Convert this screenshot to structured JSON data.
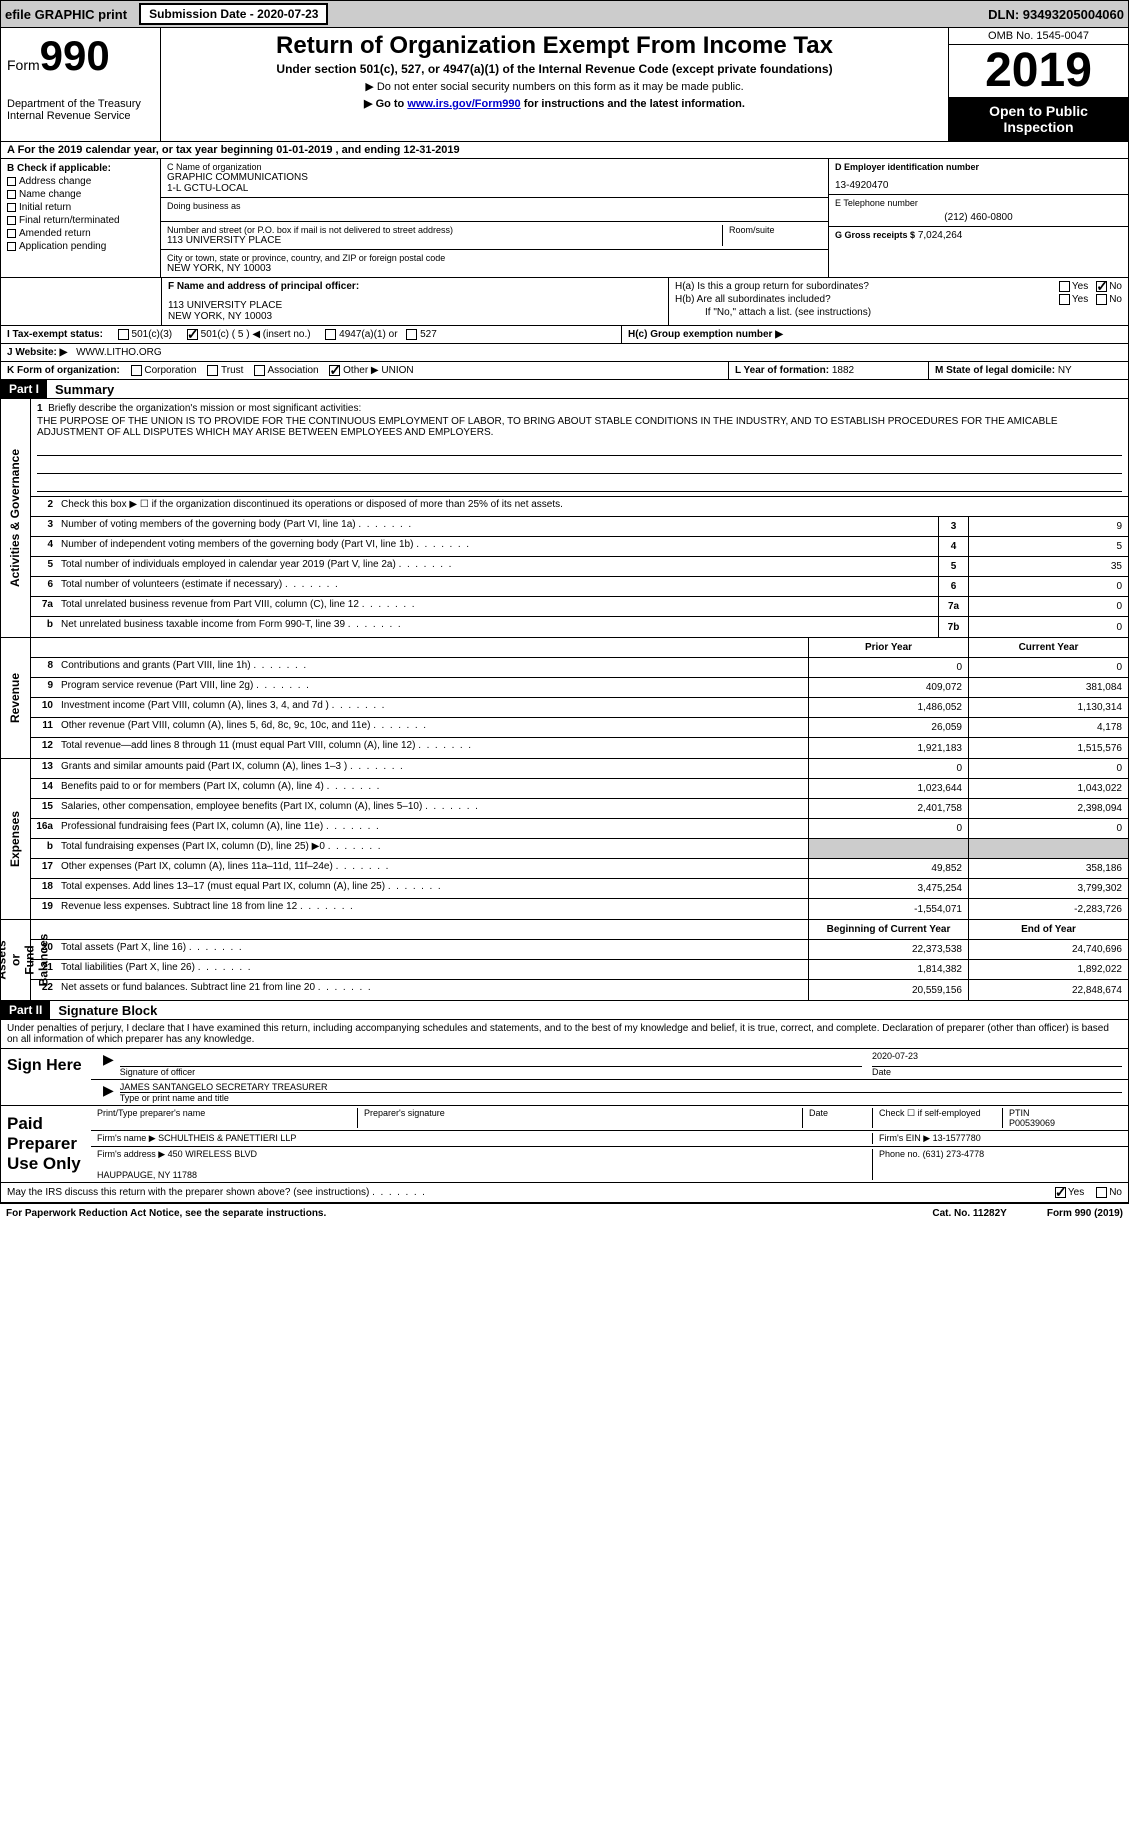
{
  "topbar": {
    "efile": "efile GRAPHIC print",
    "submission": "Submission Date - 2020-07-23",
    "dln": "DLN: 93493205004060"
  },
  "header": {
    "form_prefix": "Form",
    "form_num": "990",
    "dept": "Department of the Treasury\nInternal Revenue Service",
    "title": "Return of Organization Exempt From Income Tax",
    "sub1": "Under section 501(c), 527, or 4947(a)(1) of the Internal Revenue Code (except private foundations)",
    "sub2": "▶ Do not enter social security numbers on this form as it may be made public.",
    "sub3_pre": "▶ Go to ",
    "sub3_link": "www.irs.gov/Form990",
    "sub3_post": " for instructions and the latest information.",
    "omb": "OMB No. 1545-0047",
    "year": "2019",
    "openpub": "Open to Public Inspection"
  },
  "period": "A For the 2019 calendar year, or tax year beginning 01-01-2019   , and ending 12-31-2019",
  "boxB": {
    "hdr": "B Check if applicable:",
    "opts": [
      "Address change",
      "Name change",
      "Initial return",
      "Final return/terminated",
      "Amended return",
      "Application pending"
    ]
  },
  "boxC": {
    "name_lbl": "C Name of organization",
    "name": "GRAPHIC COMMUNICATIONS\n1-L GCTU-LOCAL",
    "dba_lbl": "Doing business as",
    "dba": "",
    "addr_lbl": "Number and street (or P.O. box if mail is not delivered to street address)",
    "room_lbl": "Room/suite",
    "addr": "113 UNIVERSITY PLACE",
    "city_lbl": "City or town, state or province, country, and ZIP or foreign postal code",
    "city": "NEW YORK, NY  10003"
  },
  "boxD": {
    "lbl": "D Employer identification number",
    "val": "13-4920470"
  },
  "boxE": {
    "lbl": "E Telephone number",
    "val": "(212) 460-0800"
  },
  "boxG": {
    "lbl": "G Gross receipts $",
    "val": "7,024,264"
  },
  "boxF": {
    "lbl": "F Name and address of principal officer:",
    "val": "113 UNIVERSITY PLACE\nNEW YORK, NY  10003"
  },
  "boxH": {
    "a": "H(a)  Is this a group return for subordinates?",
    "b": "H(b)  Are all subordinates included?",
    "note": "If \"No,\" attach a list. (see instructions)",
    "c": "H(c)  Group exemption number ▶"
  },
  "boxI": {
    "lbl": "I   Tax-exempt status:",
    "o1": "501(c)(3)",
    "o2": "501(c) ( 5 ) ◀ (insert no.)",
    "o3": "4947(a)(1) or",
    "o4": "527"
  },
  "boxJ": {
    "lbl": "J   Website: ▶",
    "val": "WWW.LITHO.ORG"
  },
  "boxK": {
    "lbl": "K Form of organization:",
    "o1": "Corporation",
    "o2": "Trust",
    "o3": "Association",
    "o4": "Other ▶",
    "val": "UNION"
  },
  "boxL": {
    "lbl": "L Year of formation:",
    "val": "1882"
  },
  "boxM": {
    "lbl": "M State of legal domicile:",
    "val": "NY"
  },
  "part1": {
    "hdr": "Part I",
    "title": "Summary"
  },
  "mission": {
    "lbl": "Briefly describe the organization's mission or most significant activities:",
    "txt": "THE PURPOSE OF THE UNION IS TO PROVIDE FOR THE CONTINUOUS EMPLOYMENT OF LABOR, TO BRING ABOUT STABLE CONDITIONS IN THE INDUSTRY, AND TO ESTABLISH PROCEDURES FOR THE AMICABLE ADJUSTMENT OF ALL DISPUTES WHICH MAY ARISE BETWEEN EMPLOYEES AND EMPLOYERS."
  },
  "lines_gov": [
    {
      "n": "2",
      "t": "Check this box ▶ ☐  if the organization discontinued its operations or disposed of more than 25% of its net assets."
    },
    {
      "n": "3",
      "t": "Number of voting members of the governing body (Part VI, line 1a)",
      "c": "3",
      "v": "9"
    },
    {
      "n": "4",
      "t": "Number of independent voting members of the governing body (Part VI, line 1b)",
      "c": "4",
      "v": "5"
    },
    {
      "n": "5",
      "t": "Total number of individuals employed in calendar year 2019 (Part V, line 2a)",
      "c": "5",
      "v": "35"
    },
    {
      "n": "6",
      "t": "Total number of volunteers (estimate if necessary)",
      "c": "6",
      "v": "0"
    },
    {
      "n": "7a",
      "t": "Total unrelated business revenue from Part VIII, column (C), line 12",
      "c": "7a",
      "v": "0"
    },
    {
      "n": "b",
      "t": "Net unrelated business taxable income from Form 990-T, line 39",
      "c": "7b",
      "v": "0"
    }
  ],
  "col_hdrs": {
    "prior": "Prior Year",
    "current": "Current Year"
  },
  "lines_rev": [
    {
      "n": "8",
      "t": "Contributions and grants (Part VIII, line 1h)",
      "p": "0",
      "c": "0"
    },
    {
      "n": "9",
      "t": "Program service revenue (Part VIII, line 2g)",
      "p": "409,072",
      "c": "381,084"
    },
    {
      "n": "10",
      "t": "Investment income (Part VIII, column (A), lines 3, 4, and 7d )",
      "p": "1,486,052",
      "c": "1,130,314"
    },
    {
      "n": "11",
      "t": "Other revenue (Part VIII, column (A), lines 5, 6d, 8c, 9c, 10c, and 11e)",
      "p": "26,059",
      "c": "4,178"
    },
    {
      "n": "12",
      "t": "Total revenue—add lines 8 through 11 (must equal Part VIII, column (A), line 12)",
      "p": "1,921,183",
      "c": "1,515,576"
    }
  ],
  "lines_exp": [
    {
      "n": "13",
      "t": "Grants and similar amounts paid (Part IX, column (A), lines 1–3 )",
      "p": "0",
      "c": "0"
    },
    {
      "n": "14",
      "t": "Benefits paid to or for members (Part IX, column (A), line 4)",
      "p": "1,023,644",
      "c": "1,043,022"
    },
    {
      "n": "15",
      "t": "Salaries, other compensation, employee benefits (Part IX, column (A), lines 5–10)",
      "p": "2,401,758",
      "c": "2,398,094"
    },
    {
      "n": "16a",
      "t": "Professional fundraising fees (Part IX, column (A), line 11e)",
      "p": "0",
      "c": "0"
    },
    {
      "n": "b",
      "t": "Total fundraising expenses (Part IX, column (D), line 25) ▶0",
      "p": "",
      "c": "",
      "grey": true
    },
    {
      "n": "17",
      "t": "Other expenses (Part IX, column (A), lines 11a–11d, 11f–24e)",
      "p": "49,852",
      "c": "358,186"
    },
    {
      "n": "18",
      "t": "Total expenses. Add lines 13–17 (must equal Part IX, column (A), line 25)",
      "p": "3,475,254",
      "c": "3,799,302"
    },
    {
      "n": "19",
      "t": "Revenue less expenses. Subtract line 18 from line 12",
      "p": "-1,554,071",
      "c": "-2,283,726"
    }
  ],
  "col_hdrs2": {
    "beg": "Beginning of Current Year",
    "end": "End of Year"
  },
  "lines_na": [
    {
      "n": "20",
      "t": "Total assets (Part X, line 16)",
      "p": "22,373,538",
      "c": "24,740,696"
    },
    {
      "n": "21",
      "t": "Total liabilities (Part X, line 26)",
      "p": "1,814,382",
      "c": "1,892,022"
    },
    {
      "n": "22",
      "t": "Net assets or fund balances. Subtract line 21 from line 20",
      "p": "20,559,156",
      "c": "22,848,674"
    }
  ],
  "vtabs": {
    "gov": "Activities & Governance",
    "rev": "Revenue",
    "exp": "Expenses",
    "na": "Net Assets or\nFund Balances"
  },
  "part2": {
    "hdr": "Part II",
    "title": "Signature Block"
  },
  "sig": {
    "decl": "Under penalties of perjury, I declare that I have examined this return, including accompanying schedules and statements, and to the best of my knowledge and belief, it is true, correct, and complete. Declaration of preparer (other than officer) is based on all information of which preparer has any knowledge.",
    "sign_here": "Sign Here",
    "sig_officer": "Signature of officer",
    "date_lbl": "Date",
    "date": "2020-07-23",
    "name": "JAMES SANTANGELO  SECRETARY TREASURER",
    "name_lbl": "Type or print name and title",
    "paid": "Paid Preparer Use Only",
    "prep_name_lbl": "Print/Type preparer's name",
    "prep_sig_lbl": "Preparer's signature",
    "check_lbl": "Check ☐ if self-employed",
    "ptin_lbl": "PTIN",
    "ptin": "P00539069",
    "firm_name_lbl": "Firm's name   ▶",
    "firm_name": "SCHULTHEIS & PANETTIERI LLP",
    "firm_ein_lbl": "Firm's EIN ▶",
    "firm_ein": "13-1577780",
    "firm_addr_lbl": "Firm's address ▶",
    "firm_addr": "450 WIRELESS BLVD\n\nHAUPPAUGE, NY  11788",
    "phone_lbl": "Phone no.",
    "phone": "(631) 273-4778",
    "discuss": "May the IRS discuss this return with the preparer shown above? (see instructions)"
  },
  "footer": {
    "left": "For Paperwork Reduction Act Notice, see the separate instructions.",
    "mid": "Cat. No. 11282Y",
    "right": "Form 990 (2019)"
  },
  "yn": {
    "yes": "Yes",
    "no": "No"
  }
}
